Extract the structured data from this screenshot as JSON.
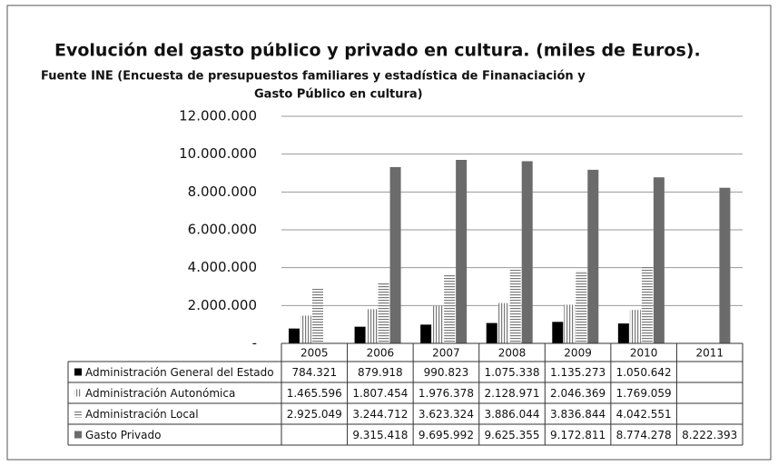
{
  "chart_data": {
    "type": "bar",
    "title": "Evolución del gasto público y privado en cultura. (miles de Euros).",
    "subtitle": [
      "Fuente INE (Encuesta de presupuestos familiares y estadística de Finanaciación y",
      "Gasto Público en cultura)"
    ],
    "categories": [
      "2005",
      "2006",
      "2007",
      "2008",
      "2009",
      "2010",
      "2011"
    ],
    "series": [
      {
        "name": "Administración General del Estado",
        "color": "#000000",
        "pattern": "solid",
        "values": [
          784321,
          879918,
          990823,
          1075338,
          1135273,
          1050642,
          null
        ],
        "value_labels": [
          "784.321",
          "879.918",
          "990.823",
          "1.075.338",
          "1.135.273",
          "1.050.642",
          null
        ]
      },
      {
        "name": "Administración Autonómica",
        "color": "#7a7a7a",
        "pattern": "vertical",
        "values": [
          1465596,
          1807454,
          1976378,
          2128971,
          2046369,
          1769059,
          null
        ],
        "value_labels": [
          "1.465.596",
          "1.807.454",
          "1.976.378",
          "2.128.971",
          "2.046.369",
          "1.769.059",
          null
        ]
      },
      {
        "name": "Administración Local",
        "color": "#7a7a7a",
        "pattern": "horizontal",
        "values": [
          2925049,
          3244712,
          3623324,
          3886044,
          3836844,
          4042551,
          null
        ],
        "value_labels": [
          "2.925.049",
          "3.244.712",
          "3.623.324",
          "3.886.044",
          "3.836.844",
          "4.042.551",
          null
        ]
      },
      {
        "name": "Gasto Privado",
        "color": "#6b6b6b",
        "pattern": "solid",
        "values": [
          null,
          9315418,
          9695992,
          9625355,
          9172811,
          8774278,
          8222393
        ],
        "value_labels": [
          null,
          "9.315.418",
          "9.695.992",
          "9.625.355",
          "9.172.811",
          "8.774.278",
          "8.222.393"
        ]
      }
    ],
    "ylim": [
      0,
      12000000
    ],
    "yticks": [
      {
        "value": 0,
        "label": "-"
      },
      {
        "value": 2000000,
        "label": "2.000.000"
      },
      {
        "value": 4000000,
        "label": "4.000.000"
      },
      {
        "value": 6000000,
        "label": "6.000.000"
      },
      {
        "value": 8000000,
        "label": "8.000.000"
      },
      {
        "value": 10000000,
        "label": "10.000.000"
      },
      {
        "value": 12000000,
        "label": "12.000.000"
      }
    ],
    "grid": true
  }
}
